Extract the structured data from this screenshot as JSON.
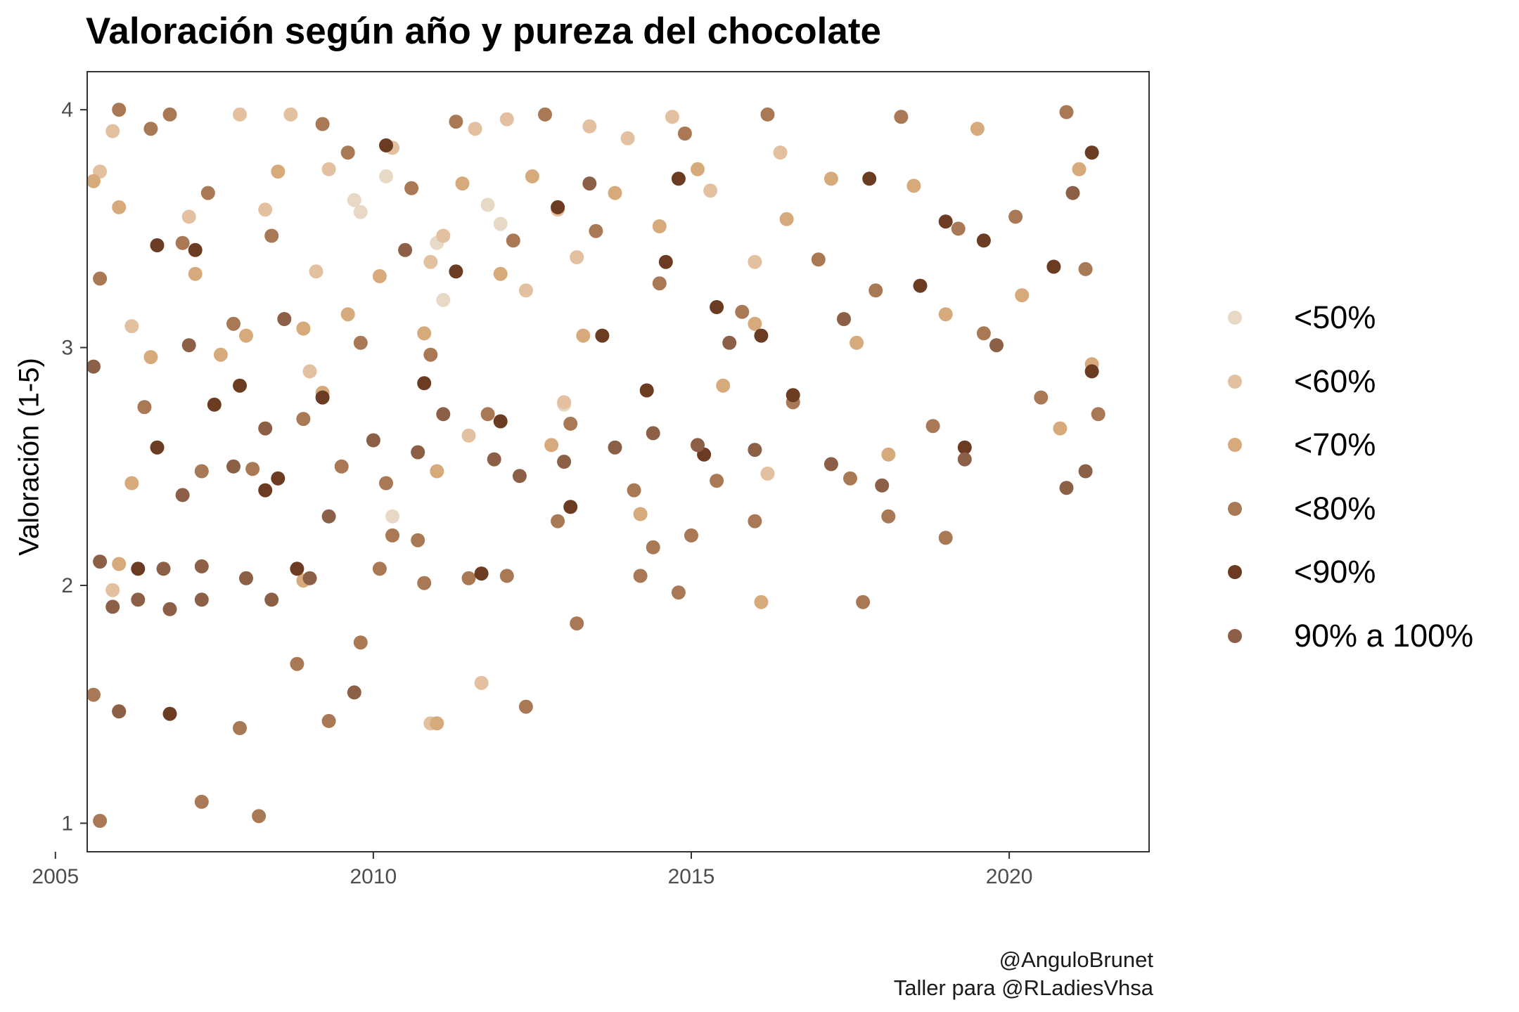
{
  "chart_data": {
    "type": "scatter",
    "title": "Valoración según año y pureza del chocolate",
    "xlabel": "",
    "ylabel": "Valoración (1-5)",
    "xlim": [
      2005.5,
      2022.2
    ],
    "ylim": [
      0.88,
      4.16
    ],
    "x_ticks": [
      2005,
      2010,
      2015,
      2020
    ],
    "y_ticks": [
      1,
      2,
      3,
      4
    ],
    "grid": false,
    "legend_position": "right",
    "categories": [
      "<50%",
      "<60%",
      "<70%",
      "<80%",
      "<90%",
      "90% a 100%"
    ],
    "colors": [
      "#e8d9c6",
      "#e2c0a0",
      "#d7aa7b",
      "#a97854",
      "#6b3c22",
      "#8c6047"
    ],
    "series": [
      {
        "name": "<50%",
        "points": [
          [
            2009.8,
            3.57
          ],
          [
            2009.7,
            3.62
          ],
          [
            2010.3,
            3.84
          ],
          [
            2011.0,
            3.44
          ],
          [
            2010.3,
            2.29
          ],
          [
            2011.1,
            3.2
          ],
          [
            2012.0,
            3.52
          ],
          [
            2013.0,
            2.76
          ],
          [
            2011.8,
            3.6
          ],
          [
            2010.2,
            3.72
          ]
        ]
      },
      {
        "name": "<60%",
        "points": [
          [
            2005.7,
            3.74
          ],
          [
            2005.9,
            3.91
          ],
          [
            2006.2,
            3.09
          ],
          [
            2007.1,
            3.55
          ],
          [
            2007.9,
            3.98
          ],
          [
            2008.3,
            3.58
          ],
          [
            2008.7,
            3.98
          ],
          [
            2009.1,
            3.32
          ],
          [
            2009.3,
            3.75
          ],
          [
            2009.0,
            2.9
          ],
          [
            2010.3,
            3.84
          ],
          [
            2010.9,
            3.36
          ],
          [
            2011.1,
            3.47
          ],
          [
            2011.5,
            2.63
          ],
          [
            2012.1,
            3.96
          ],
          [
            2012.4,
            3.24
          ],
          [
            2012.9,
            3.58
          ],
          [
            2013.0,
            2.77
          ],
          [
            2013.4,
            3.93
          ],
          [
            2014.0,
            3.88
          ],
          [
            2014.7,
            3.97
          ],
          [
            2015.3,
            3.66
          ],
          [
            2016.0,
            3.36
          ],
          [
            2016.2,
            2.47
          ],
          [
            2016.4,
            3.82
          ],
          [
            2010.9,
            1.42
          ],
          [
            2011.7,
            1.59
          ],
          [
            2005.9,
            1.98
          ],
          [
            2013.2,
            3.38
          ],
          [
            2011.6,
            3.92
          ]
        ]
      },
      {
        "name": "<70%",
        "points": [
          [
            2005.6,
            3.7
          ],
          [
            2006.0,
            3.59
          ],
          [
            2006.5,
            2.96
          ],
          [
            2007.2,
            3.31
          ],
          [
            2007.6,
            2.97
          ],
          [
            2008.0,
            3.05
          ],
          [
            2008.5,
            3.74
          ],
          [
            2008.9,
            3.08
          ],
          [
            2008.9,
            2.02
          ],
          [
            2009.2,
            2.81
          ],
          [
            2009.6,
            3.14
          ],
          [
            2010.1,
            3.3
          ],
          [
            2010.8,
            3.06
          ],
          [
            2011.0,
            2.48
          ],
          [
            2011.4,
            3.69
          ],
          [
            2012.0,
            3.31
          ],
          [
            2012.5,
            3.72
          ],
          [
            2012.8,
            2.59
          ],
          [
            2013.3,
            3.05
          ],
          [
            2013.8,
            3.65
          ],
          [
            2014.2,
            2.3
          ],
          [
            2014.5,
            3.51
          ],
          [
            2015.1,
            3.75
          ],
          [
            2015.5,
            2.84
          ],
          [
            2016.0,
            3.1
          ],
          [
            2016.1,
            1.93
          ],
          [
            2016.5,
            3.54
          ],
          [
            2017.2,
            3.71
          ],
          [
            2017.6,
            3.02
          ],
          [
            2018.1,
            2.55
          ],
          [
            2018.5,
            3.68
          ],
          [
            2019.0,
            3.14
          ],
          [
            2019.5,
            3.92
          ],
          [
            2020.2,
            3.22
          ],
          [
            2020.8,
            2.66
          ],
          [
            2021.1,
            3.75
          ],
          [
            2021.3,
            2.93
          ],
          [
            2011.0,
            1.42
          ],
          [
            2006.2,
            2.43
          ],
          [
            2006.0,
            2.09
          ]
        ]
      },
      {
        "name": "<80%",
        "points": [
          [
            2005.7,
            3.29
          ],
          [
            2006.0,
            4.0
          ],
          [
            2006.5,
            3.92
          ],
          [
            2006.8,
            3.98
          ],
          [
            2007.0,
            3.44
          ],
          [
            2007.3,
            2.48
          ],
          [
            2007.8,
            3.1
          ],
          [
            2008.1,
            2.49
          ],
          [
            2008.4,
            3.47
          ],
          [
            2008.9,
            2.7
          ],
          [
            2009.2,
            3.94
          ],
          [
            2009.5,
            2.5
          ],
          [
            2009.8,
            3.02
          ],
          [
            2010.2,
            2.43
          ],
          [
            2010.6,
            3.67
          ],
          [
            2010.9,
            2.97
          ],
          [
            2011.3,
            3.95
          ],
          [
            2011.8,
            2.72
          ],
          [
            2012.2,
            3.45
          ],
          [
            2012.7,
            3.98
          ],
          [
            2013.1,
            2.68
          ],
          [
            2013.5,
            3.49
          ],
          [
            2014.1,
            2.4
          ],
          [
            2014.5,
            3.27
          ],
          [
            2014.9,
            3.9
          ],
          [
            2015.4,
            2.44
          ],
          [
            2015.8,
            3.15
          ],
          [
            2016.2,
            3.98
          ],
          [
            2016.6,
            2.77
          ],
          [
            2017.0,
            3.37
          ],
          [
            2017.5,
            2.45
          ],
          [
            2017.9,
            3.24
          ],
          [
            2018.3,
            3.97
          ],
          [
            2018.8,
            2.67
          ],
          [
            2019.2,
            3.5
          ],
          [
            2019.6,
            3.06
          ],
          [
            2020.1,
            3.55
          ],
          [
            2020.5,
            2.79
          ],
          [
            2020.9,
            3.99
          ],
          [
            2021.2,
            3.33
          ],
          [
            2021.4,
            2.72
          ],
          [
            2005.6,
            1.54
          ],
          [
            2005.7,
            1.01
          ],
          [
            2007.3,
            1.09
          ],
          [
            2008.2,
            1.03
          ],
          [
            2007.9,
            1.4
          ],
          [
            2009.3,
            1.43
          ],
          [
            2008.8,
            1.67
          ],
          [
            2009.8,
            1.76
          ],
          [
            2012.4,
            1.49
          ],
          [
            2013.2,
            1.84
          ],
          [
            2014.8,
            1.97
          ],
          [
            2017.7,
            1.93
          ],
          [
            2010.8,
            2.01
          ],
          [
            2011.5,
            2.03
          ],
          [
            2012.1,
            2.04
          ],
          [
            2014.2,
            2.04
          ],
          [
            2006.0,
            1.47
          ],
          [
            2006.4,
            2.75
          ],
          [
            2010.1,
            2.07
          ],
          [
            2012.9,
            2.27
          ],
          [
            2014.4,
            2.16
          ],
          [
            2016.0,
            2.27
          ],
          [
            2018.1,
            2.29
          ],
          [
            2019.0,
            2.2
          ],
          [
            2015.0,
            2.21
          ],
          [
            2010.3,
            2.21
          ],
          [
            2010.7,
            2.19
          ],
          [
            2007.4,
            3.65
          ],
          [
            2009.6,
            3.82
          ]
        ]
      },
      {
        "name": "<90%",
        "points": [
          [
            2006.6,
            3.43
          ],
          [
            2007.5,
            2.76
          ],
          [
            2007.9,
            2.84
          ],
          [
            2008.5,
            2.45
          ],
          [
            2008.8,
            2.07
          ],
          [
            2009.2,
            2.79
          ],
          [
            2010.2,
            3.85
          ],
          [
            2010.8,
            2.85
          ],
          [
            2011.3,
            3.32
          ],
          [
            2011.7,
            2.05
          ],
          [
            2012.0,
            2.69
          ],
          [
            2012.9,
            3.59
          ],
          [
            2013.1,
            2.33
          ],
          [
            2013.6,
            3.05
          ],
          [
            2014.3,
            2.82
          ],
          [
            2014.8,
            3.71
          ],
          [
            2015.4,
            3.17
          ],
          [
            2016.1,
            3.05
          ],
          [
            2016.6,
            2.8
          ],
          [
            2017.8,
            3.71
          ],
          [
            2018.6,
            3.26
          ],
          [
            2019.0,
            3.53
          ],
          [
            2019.3,
            2.58
          ],
          [
            2019.6,
            3.45
          ],
          [
            2020.7,
            3.34
          ],
          [
            2021.3,
            2.9
          ],
          [
            2021.3,
            3.82
          ],
          [
            2006.8,
            1.46
          ],
          [
            2006.3,
            2.07
          ],
          [
            2006.6,
            2.58
          ],
          [
            2008.3,
            2.4
          ],
          [
            2007.2,
            3.41
          ],
          [
            2014.6,
            3.36
          ],
          [
            2015.2,
            2.55
          ]
        ]
      },
      {
        "name": "90% a 100%",
        "points": [
          [
            2005.6,
            2.92
          ],
          [
            2005.7,
            2.1
          ],
          [
            2005.9,
            1.91
          ],
          [
            2006.0,
            1.47
          ],
          [
            2006.3,
            1.94
          ],
          [
            2006.7,
            2.07
          ],
          [
            2007.0,
            2.38
          ],
          [
            2007.3,
            2.08
          ],
          [
            2007.3,
            1.94
          ],
          [
            2007.8,
            2.5
          ],
          [
            2008.0,
            2.03
          ],
          [
            2008.4,
            1.94
          ],
          [
            2008.3,
            2.66
          ],
          [
            2009.0,
            2.03
          ],
          [
            2009.3,
            2.29
          ],
          [
            2009.7,
            1.55
          ],
          [
            2010.0,
            2.61
          ],
          [
            2010.7,
            2.56
          ],
          [
            2011.1,
            2.72
          ],
          [
            2011.9,
            2.53
          ],
          [
            2012.3,
            2.46
          ],
          [
            2013.0,
            2.52
          ],
          [
            2013.8,
            2.58
          ],
          [
            2014.4,
            2.64
          ],
          [
            2015.1,
            2.59
          ],
          [
            2016.0,
            2.57
          ],
          [
            2017.2,
            2.51
          ],
          [
            2018.0,
            2.42
          ],
          [
            2019.3,
            2.53
          ],
          [
            2020.9,
            2.41
          ],
          [
            2021.2,
            2.48
          ],
          [
            2006.8,
            1.9
          ],
          [
            2007.1,
            3.01
          ],
          [
            2008.6,
            3.12
          ],
          [
            2010.5,
            3.41
          ],
          [
            2013.4,
            3.69
          ],
          [
            2015.6,
            3.02
          ],
          [
            2017.4,
            3.12
          ],
          [
            2019.8,
            3.01
          ],
          [
            2021.0,
            3.65
          ]
        ]
      }
    ]
  },
  "caption": {
    "line1": "@AnguloBrunet",
    "line2": "Taller para @RLadiesVhsa"
  }
}
